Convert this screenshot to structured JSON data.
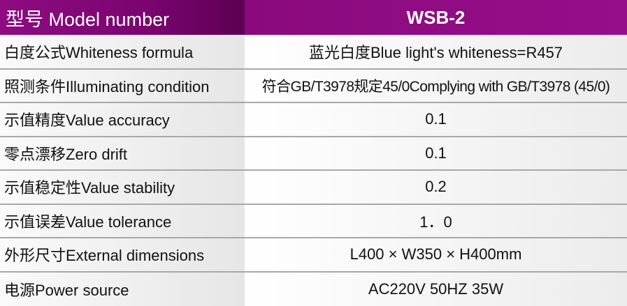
{
  "header": {
    "label": "型号 Model number",
    "model": "WSB-2"
  },
  "rows": [
    {
      "label": "白度公式Whiteness formula",
      "value": "蓝光白度Blue light's whiteness=R457"
    },
    {
      "label": "照测条件Illuminating condition",
      "value": "符合GB/T3978规定45/0Complying with GB/T3978 (45/0)"
    },
    {
      "label": "示值精度Value accuracy",
      "value": "0.1"
    },
    {
      "label": "零点漂移Zero drift",
      "value": "0.1"
    },
    {
      "label": "示值稳定性Value stability",
      "value": "0.2"
    },
    {
      "label": "示值误差Value tolerance",
      "value": "1．0"
    },
    {
      "label": "外形尺寸External dimensions",
      "value": "L400 × W350 × H400mm"
    },
    {
      "label": "电源Power source",
      "value": "AC220V 50HZ  35W"
    }
  ],
  "colors": {
    "header_purple": "#8e0c80"
  }
}
